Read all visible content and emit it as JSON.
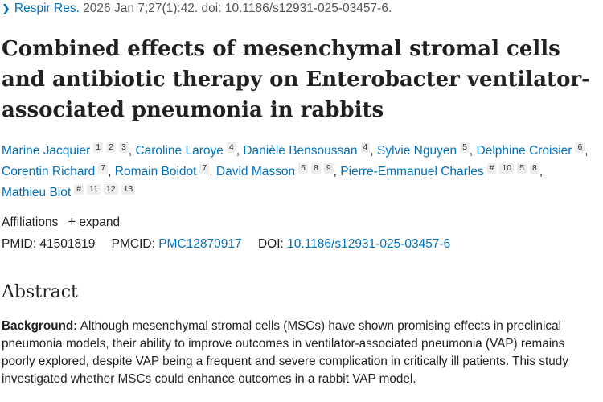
{
  "citation": {
    "chevron_icon": "chevron-right-icon",
    "journal": "Respir Res.",
    "details": "2026 Jan 7;27(1):42. doi: 10.1186/s12931-025-03457-6."
  },
  "title": "Combined effects of mesenchymal stromal cells and antibiotic therapy on Enterobacter ventilator-associated pneumonia in rabbits",
  "authors": [
    {
      "name": "Marine Jacquier",
      "affils": [
        "1",
        "2",
        "3"
      ],
      "sep": ","
    },
    {
      "name": "Caroline Laroye",
      "affils": [
        "4"
      ],
      "sep": ","
    },
    {
      "name": "Danièle Bensoussan",
      "affils": [
        "4"
      ],
      "sep": ","
    },
    {
      "name": "Sylvie Nguyen",
      "affils": [
        "5"
      ],
      "sep": ","
    },
    {
      "name": "Delphine Croisier",
      "affils": [
        "6"
      ],
      "sep": ","
    },
    {
      "name": "Corentin Richard",
      "affils": [
        "7"
      ],
      "sep": ","
    },
    {
      "name": "Romain Boidot",
      "affils": [
        "7"
      ],
      "sep": ","
    },
    {
      "name": "David Masson",
      "affils": [
        "5",
        "8",
        "9"
      ],
      "sep": ","
    },
    {
      "name": "Pierre-Emmanuel Charles",
      "affils": [
        "#",
        "10",
        "5",
        "8"
      ],
      "sep": ","
    },
    {
      "name": "Mathieu Blot",
      "affils": [
        "#",
        "11",
        "12",
        "13"
      ],
      "sep": ""
    }
  ],
  "affiliations": {
    "label": "Affiliations",
    "plus_icon": "plus-icon",
    "expand": "expand"
  },
  "ids": {
    "pmid_label": "PMID:",
    "pmid": "41501819",
    "pmcid_label": "PMCID:",
    "pmcid": "PMC12870917",
    "doi_label": "DOI:",
    "doi": "10.1186/s12931-025-03457-6"
  },
  "abstract": {
    "heading": "Abstract",
    "background_label": "Background:",
    "background_text": "Although mesenchymal stromal cells (MSCs) have shown promising effects in preclinical pneumonia models, their ability to improve outcomes in ventilator-associated pneumonia (VAP) remains poorly explored, despite VAP being a frequent and severe complication in critically ill patients. This study investigated whether MSCs could enhance outcomes in a rabbit VAP model."
  }
}
